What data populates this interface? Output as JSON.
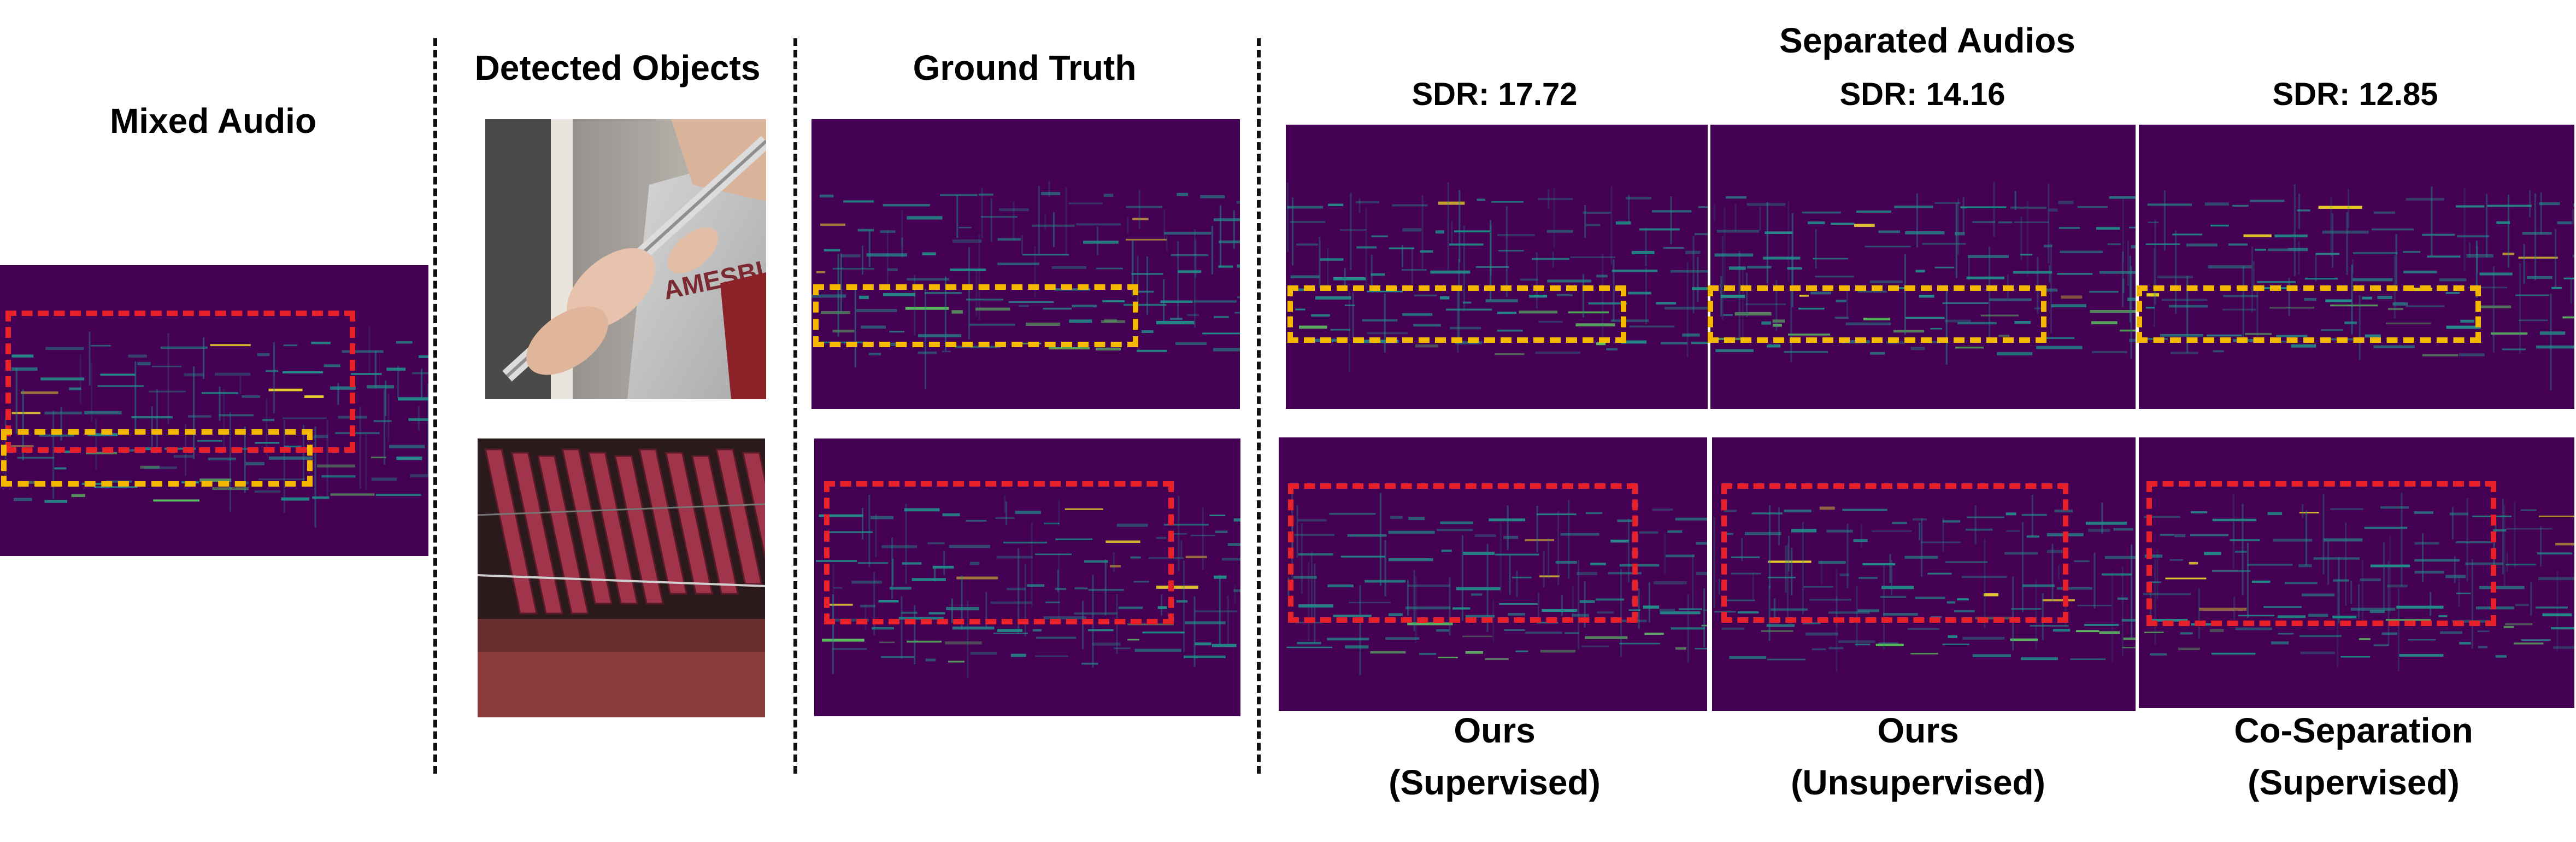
{
  "colors": {
    "spectrogram_bg": "#440154",
    "spectrogram_mid": "#21918c",
    "spectrogram_high": "#5ec962",
    "spectrogram_peak": "#fde725",
    "box_red": "#e8202a",
    "box_yellow": "#f5b800"
  },
  "sections": {
    "mixed": {
      "title": "Mixed Audio"
    },
    "detected": {
      "title": "Detected Objects",
      "objects": [
        {
          "icon": "flute-player-photo"
        },
        {
          "icon": "marimba-photo"
        }
      ]
    },
    "ground_truth": {
      "title": "Ground Truth"
    },
    "separated": {
      "title": "Separated Audios",
      "methods": [
        {
          "sdr": "SDR: 17.72",
          "label_line1": "Ours",
          "label_line2": "(Supervised)"
        },
        {
          "sdr": "SDR: 14.16",
          "label_line1": "Ours",
          "label_line2": "(Unsupervised)"
        },
        {
          "sdr": "SDR: 12.85",
          "label_line1": "Co-Separation",
          "label_line2": "(Supervised)"
        }
      ]
    }
  }
}
